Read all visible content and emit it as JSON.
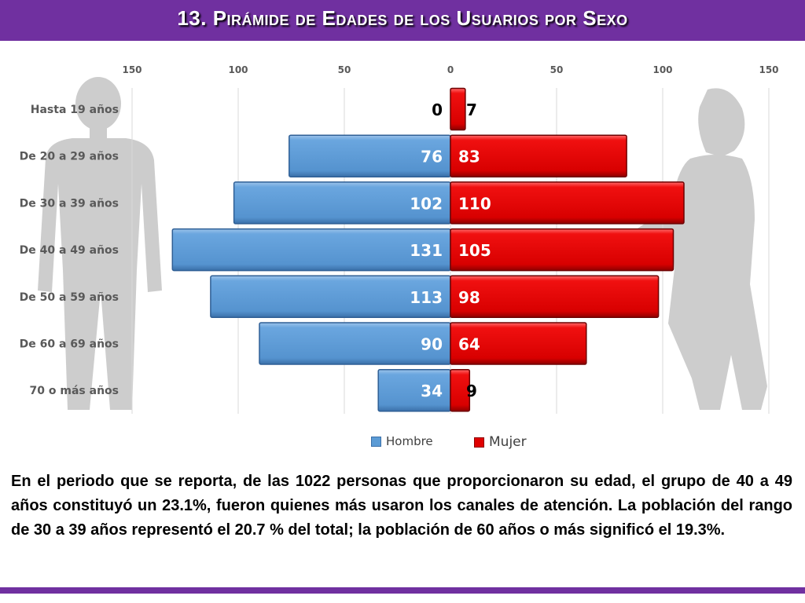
{
  "title": "13. Pirámide de Edades de los Usuarios por Sexo",
  "description": "En el periodo que se reporta, de las 1022 personas que proporcionaron su edad, el grupo de 40 a 49 años constituyó un 23.1%, fueron quienes más usaron los canales de atención. La población del rango de 30 a 39 años representó el 20.7 % del total; la población de 60 años o más significó el 19.3%.",
  "colors": {
    "accent": "#7030a0",
    "hombre": "#5b9bd5",
    "mujer": "#e00000"
  },
  "icons": [
    "male-silhouette-icon",
    "female-silhouette-icon"
  ],
  "chart_data": {
    "type": "bar",
    "orientation": "horizontal",
    "layout": "population-pyramid",
    "categories": [
      "Hasta 19 años",
      "De 20 a 29 años",
      "De 30 a 39 años",
      "De 40 a 49 años",
      "De 50 a 59 años",
      "De 60 a 69 años",
      "70 o más años"
    ],
    "series": [
      {
        "name": "Hombre",
        "values": [
          0,
          76,
          102,
          131,
          113,
          90,
          34
        ],
        "color": "#5b9bd5",
        "side": "left"
      },
      {
        "name": "Mujer",
        "values": [
          7,
          83,
          110,
          105,
          98,
          64,
          9
        ],
        "color": "#e00000",
        "side": "right"
      }
    ],
    "xlim": [
      -150,
      150
    ],
    "tick_values": [
      -150,
      -100,
      -50,
      0,
      50,
      100,
      150
    ],
    "tick_labels": [
      "150",
      "100",
      "50",
      "0",
      "50",
      "100",
      "150"
    ],
    "title": "",
    "xlabel": "",
    "ylabel": "",
    "grid": true,
    "legend_position": "bottom"
  }
}
